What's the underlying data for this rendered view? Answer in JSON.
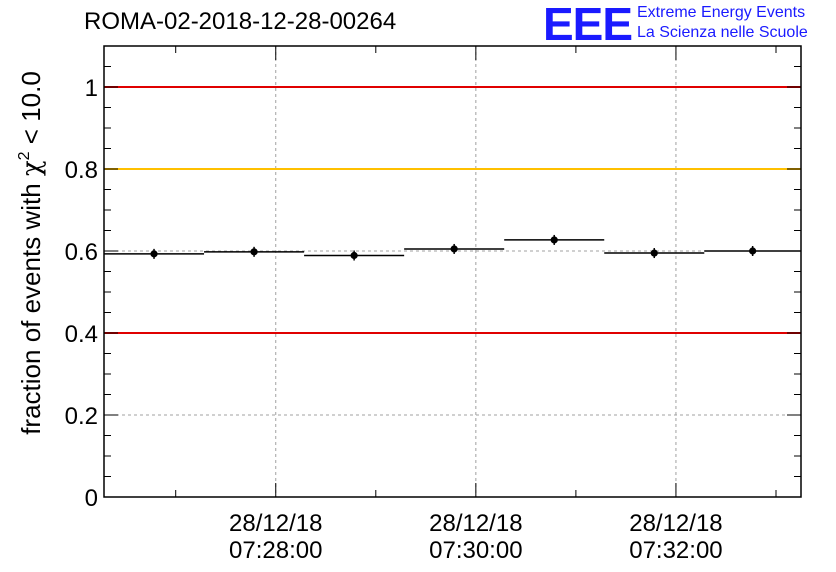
{
  "header": {
    "run_title": "ROMA-02-2018-12-28-00264",
    "logo_text": "EEE",
    "logo_line1": "Extreme Energy Events",
    "logo_line2": "La Scienza nelle Scuole"
  },
  "colors": {
    "threshold_red": "#e00000",
    "threshold_yellow": "#ffc000",
    "logo_blue": "#1a1aff",
    "points": "#000000"
  },
  "chart_data": {
    "type": "scatter",
    "title": "ROMA-02-2018-12-28-00264",
    "ylabel_prefix": "fraction of events with ",
    "ylabel_symbol": "χ",
    "ylabel_sup": "2",
    "ylabel_suffix": " < 10.0",
    "xlabel": "",
    "x_unit": "minutes (time of day, 28/12/18)",
    "xlim": [
      "07:26:17",
      "07:33:15"
    ],
    "ylim": [
      0,
      1.1
    ],
    "grid": true,
    "x_ticks": [
      {
        "time": "07:28:00",
        "date": "28/12/18",
        "time_label": "07:28:00"
      },
      {
        "time": "07:30:00",
        "date": "28/12/18",
        "time_label": "07:30:00"
      },
      {
        "time": "07:32:00",
        "date": "28/12/18",
        "time_label": "07:32:00"
      }
    ],
    "y_ticks": [
      {
        "value": 0,
        "label": "0"
      },
      {
        "value": 0.2,
        "label": "0.2"
      },
      {
        "value": 0.4,
        "label": "0.4"
      },
      {
        "value": 0.6,
        "label": "0.6"
      },
      {
        "value": 0.8,
        "label": "0.8"
      },
      {
        "value": 1.0,
        "label": "1"
      }
    ],
    "reference_lines": [
      {
        "y": 1.0,
        "color": "#e00000"
      },
      {
        "y": 0.8,
        "color": "#ffc000"
      },
      {
        "y": 0.4,
        "color": "#e00000"
      }
    ],
    "points": [
      {
        "x_start": "07:26:17",
        "x_end": "07:27:17",
        "y": 0.593
      },
      {
        "x_start": "07:27:17",
        "x_end": "07:28:17",
        "y": 0.598
      },
      {
        "x_start": "07:28:17",
        "x_end": "07:29:17",
        "y": 0.589
      },
      {
        "x_start": "07:29:17",
        "x_end": "07:30:17",
        "y": 0.605
      },
      {
        "x_start": "07:30:17",
        "x_end": "07:31:17",
        "y": 0.627
      },
      {
        "x_start": "07:31:17",
        "x_end": "07:32:17",
        "y": 0.595
      },
      {
        "x_start": "07:32:17",
        "x_end": "07:33:15",
        "y": 0.6
      }
    ]
  }
}
